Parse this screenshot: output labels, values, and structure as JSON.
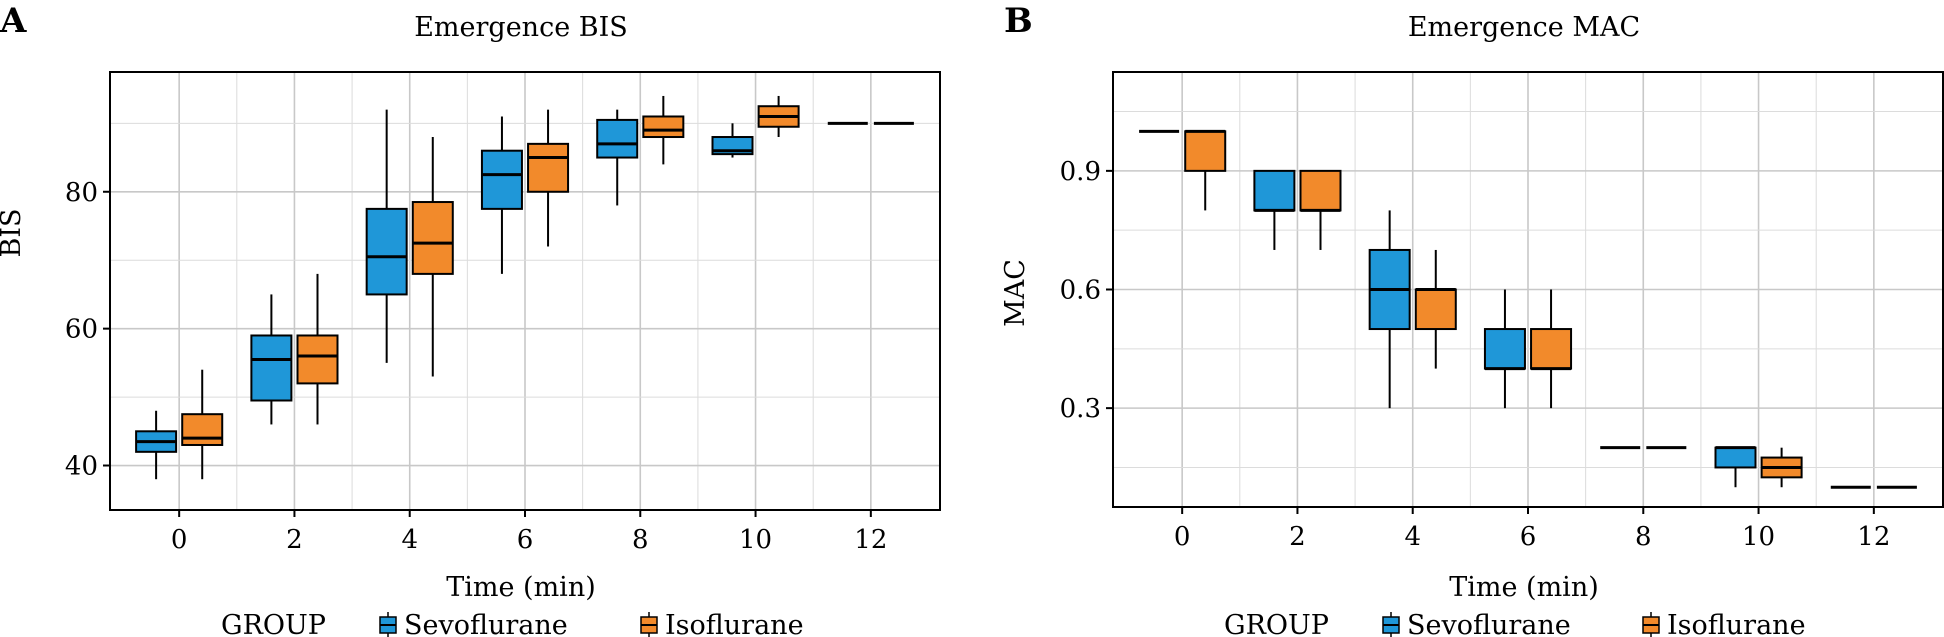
{
  "chart_data": [
    {
      "panel_label": "A",
      "type": "box",
      "title": "Emergence BIS",
      "xlabel": "Time (min)",
      "ylabel": "BIS",
      "x_ticks": [
        0,
        2,
        4,
        6,
        8,
        10,
        12
      ],
      "y_ticks": [
        40,
        60,
        80
      ],
      "xlim": [
        -1.2,
        13.2
      ],
      "ylim": [
        33.5,
        97.5
      ],
      "grid": true,
      "legend_title": "GROUP",
      "series": [
        {
          "name": "Sevoflurane",
          "color": "#1f97d8",
          "boxes": [
            {
              "x": 0,
              "min": 38,
              "q1": 42,
              "median": 43.5,
              "q3": 45,
              "max": 48
            },
            {
              "x": 2,
              "min": 46,
              "q1": 49.5,
              "median": 55.5,
              "q3": 59,
              "max": 65
            },
            {
              "x": 4,
              "min": 55,
              "q1": 65,
              "median": 70.5,
              "q3": 77.5,
              "max": 92
            },
            {
              "x": 6,
              "min": 68,
              "q1": 77.5,
              "median": 82.5,
              "q3": 86,
              "max": 91
            },
            {
              "x": 8,
              "min": 78,
              "q1": 85,
              "median": 87,
              "q3": 90.5,
              "max": 92
            },
            {
              "x": 10,
              "min": 85,
              "q1": 85.5,
              "median": 86,
              "q3": 88,
              "max": 90
            },
            {
              "x": 12,
              "min": 90,
              "q1": 90,
              "median": 90,
              "q3": 90,
              "max": 90
            }
          ]
        },
        {
          "name": "Isoflurane",
          "color": "#f28a2b",
          "boxes": [
            {
              "x": 0,
              "min": 38,
              "q1": 43,
              "median": 44,
              "q3": 47.5,
              "max": 54
            },
            {
              "x": 2,
              "min": 46,
              "q1": 52,
              "median": 56,
              "q3": 59,
              "max": 68
            },
            {
              "x": 4,
              "min": 53,
              "q1": 68,
              "median": 72.5,
              "q3": 78.5,
              "max": 88
            },
            {
              "x": 6,
              "min": 72,
              "q1": 80,
              "median": 85,
              "q3": 87,
              "max": 92
            },
            {
              "x": 8,
              "min": 84,
              "q1": 88,
              "median": 89,
              "q3": 91,
              "max": 94
            },
            {
              "x": 10,
              "min": 88,
              "q1": 89.5,
              "median": 91,
              "q3": 92.5,
              "max": 94
            },
            {
              "x": 12,
              "min": 90,
              "q1": 90,
              "median": 90,
              "q3": 90,
              "max": 90
            }
          ]
        }
      ]
    },
    {
      "panel_label": "B",
      "type": "box",
      "title": "Emergence MAC",
      "xlabel": "Time (min)",
      "ylabel": "MAC",
      "x_ticks": [
        0,
        2,
        4,
        6,
        8,
        10,
        12
      ],
      "y_ticks": [
        0.3,
        0.6,
        0.9
      ],
      "xlim": [
        -1.2,
        13.2
      ],
      "ylim": [
        0.05,
        1.15
      ],
      "grid": true,
      "legend_title": "GROUP",
      "series": [
        {
          "name": "Sevoflurane",
          "color": "#1f97d8",
          "boxes": [
            {
              "x": 0,
              "min": 1.0,
              "q1": 1.0,
              "median": 1.0,
              "q3": 1.0,
              "max": 1.0
            },
            {
              "x": 2,
              "min": 0.7,
              "q1": 0.8,
              "median": 0.8,
              "q3": 0.9,
              "max": 0.9
            },
            {
              "x": 4,
              "min": 0.3,
              "q1": 0.5,
              "median": 0.6,
              "q3": 0.7,
              "max": 0.8
            },
            {
              "x": 6,
              "min": 0.3,
              "q1": 0.4,
              "median": 0.4,
              "q3": 0.5,
              "max": 0.6
            },
            {
              "x": 8,
              "min": 0.2,
              "q1": 0.2,
              "median": 0.2,
              "q3": 0.2,
              "max": 0.2
            },
            {
              "x": 10,
              "min": 0.1,
              "q1": 0.15,
              "median": 0.2,
              "q3": 0.2,
              "max": 0.2
            },
            {
              "x": 12,
              "min": 0.1,
              "q1": 0.1,
              "median": 0.1,
              "q3": 0.1,
              "max": 0.1
            }
          ]
        },
        {
          "name": "Isoflurane",
          "color": "#f28a2b",
          "boxes": [
            {
              "x": 0,
              "min": 0.8,
              "q1": 0.9,
              "median": 1.0,
              "q3": 1.0,
              "max": 1.0
            },
            {
              "x": 2,
              "min": 0.7,
              "q1": 0.8,
              "median": 0.8,
              "q3": 0.9,
              "max": 0.9
            },
            {
              "x": 4,
              "min": 0.4,
              "q1": 0.5,
              "median": 0.6,
              "q3": 0.6,
              "max": 0.7
            },
            {
              "x": 6,
              "min": 0.3,
              "q1": 0.4,
              "median": 0.4,
              "q3": 0.5,
              "max": 0.6
            },
            {
              "x": 8,
              "min": 0.2,
              "q1": 0.2,
              "median": 0.2,
              "q3": 0.2,
              "max": 0.2
            },
            {
              "x": 10,
              "min": 0.1,
              "q1": 0.125,
              "median": 0.15,
              "q3": 0.175,
              "max": 0.2
            },
            {
              "x": 12,
              "min": 0.1,
              "q1": 0.1,
              "median": 0.1,
              "q3": 0.1,
              "max": 0.1
            }
          ]
        }
      ]
    }
  ]
}
